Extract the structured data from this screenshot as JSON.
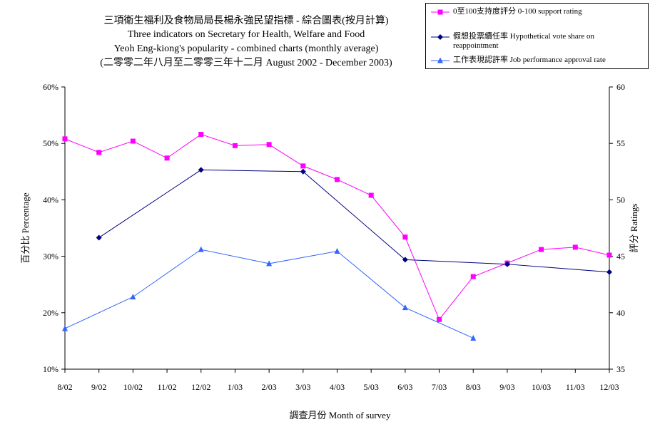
{
  "title": {
    "line1": "三項衛生福利及食物局局長楊永強民望指標 - 綜合圖表(按月計算)",
    "line2": "Three indicators on Secretary for Health, Welfare and Food",
    "line3": "Yeoh Eng-kiong's popularity - combined charts (monthly average)",
    "line4": "(二零零二年八月至二零零三年十二月 August 2002 - December 2003)"
  },
  "colors": {
    "support": "#ff00ff",
    "vote": "#000080",
    "approval": "#3366ff",
    "axis": "#000000"
  },
  "chart_data": {
    "type": "line",
    "categories": [
      "8/02",
      "9/02",
      "10/02",
      "11/02",
      "12/02",
      "1/03",
      "2/03",
      "3/03",
      "4/03",
      "5/03",
      "6/03",
      "7/03",
      "8/03",
      "9/03",
      "10/03",
      "11/03",
      "12/03"
    ],
    "xlabel": "調查月份 Month of survey",
    "ylabel_left": "百分比 Percentage",
    "ylabel_right": "評分 Ratings",
    "ylim_left": [
      10,
      60
    ],
    "ylim_right": [
      35,
      60
    ],
    "yticks_left": [
      "10%",
      "20%",
      "30%",
      "40%",
      "50%",
      "60%"
    ],
    "yticks_right": [
      "35",
      "40",
      "45",
      "50",
      "55",
      "60"
    ],
    "series": [
      {
        "name": "0至100支持度評分 0-100 support rating",
        "axis": "right",
        "marker": "square",
        "values": [
          55.4,
          54.2,
          55.2,
          53.7,
          55.8,
          54.8,
          54.9,
          53.0,
          51.8,
          50.4,
          46.7,
          39.4,
          43.2,
          44.4,
          45.6,
          45.8,
          45.1
        ]
      },
      {
        "name": "假想投票續任率 Hypothetical vote share on reappointment",
        "axis": "left",
        "marker": "diamond",
        "values": [
          null,
          33.3,
          null,
          null,
          45.3,
          null,
          null,
          45.0,
          null,
          null,
          29.4,
          null,
          null,
          28.6,
          null,
          null,
          27.2
        ]
      },
      {
        "name": "工作表現認許率 Job performance approval rate",
        "axis": "left",
        "marker": "triangle",
        "values": [
          17.2,
          null,
          22.8,
          null,
          31.2,
          null,
          28.7,
          null,
          30.9,
          null,
          20.9,
          null,
          15.5,
          null,
          null,
          null,
          null
        ]
      }
    ]
  },
  "legend": {
    "item1": "0至100支持度評分 0-100 support rating",
    "item2": "假想投票續任率 Hypothetical vote share on reappointment",
    "item3": "工作表現認許率 Job performance approval rate"
  }
}
